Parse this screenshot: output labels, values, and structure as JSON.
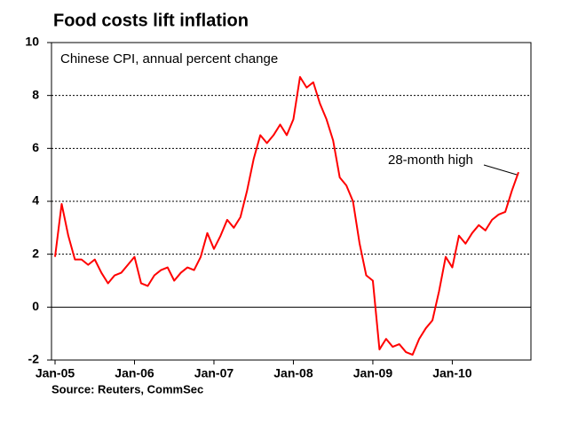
{
  "chart_data": {
    "type": "line",
    "title": "Food costs lift inflation",
    "subtitle": "Chinese CPI, annual percent change",
    "source": "Source: Reuters, CommSec",
    "annotation": "28-month high",
    "categories": [
      "Jan-05",
      null,
      null,
      null,
      null,
      null,
      null,
      null,
      null,
      null,
      null,
      null,
      "Jan-06",
      null,
      null,
      null,
      null,
      null,
      null,
      null,
      null,
      null,
      null,
      null,
      "Jan-07",
      null,
      null,
      null,
      null,
      null,
      null,
      null,
      null,
      null,
      null,
      null,
      "Jan-08",
      null,
      null,
      null,
      null,
      null,
      null,
      null,
      null,
      null,
      null,
      null,
      "Jan-09",
      null,
      null,
      null,
      null,
      null,
      null,
      null,
      null,
      null,
      null,
      null,
      "Jan-10",
      null,
      null,
      null,
      null,
      null,
      null,
      null,
      null,
      null,
      null
    ],
    "series": [
      {
        "name": "Chinese CPI",
        "color": "#ff0000",
        "values": [
          1.9,
          3.9,
          2.7,
          1.8,
          1.8,
          1.6,
          1.8,
          1.3,
          0.9,
          1.2,
          1.3,
          1.6,
          1.9,
          0.9,
          0.8,
          1.2,
          1.4,
          1.5,
          1.0,
          1.3,
          1.5,
          1.4,
          1.9,
          2.8,
          2.2,
          2.7,
          3.3,
          3.0,
          3.4,
          4.4,
          5.6,
          6.5,
          6.2,
          6.5,
          6.9,
          6.5,
          7.1,
          8.7,
          8.3,
          8.5,
          7.7,
          7.1,
          6.3,
          4.9,
          4.6,
          4.0,
          2.4,
          1.2,
          1.0,
          -1.6,
          -1.2,
          -1.5,
          -1.4,
          -1.7,
          -1.8,
          -1.2,
          -0.8,
          -0.5,
          0.6,
          1.9,
          1.5,
          2.7,
          2.4,
          2.8,
          3.1,
          2.9,
          3.3,
          3.5,
          3.6,
          4.4,
          5.1
        ]
      }
    ],
    "ylim": [
      -2,
      10
    ],
    "yticks": [
      10,
      8,
      6,
      4,
      2,
      0,
      -2
    ],
    "grid": true
  }
}
